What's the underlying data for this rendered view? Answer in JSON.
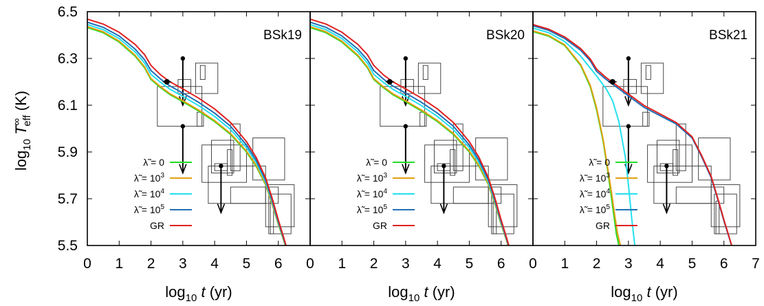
{
  "chart_data": {
    "type": "line",
    "ylabel": {
      "prefix": "log",
      "sub": "10",
      "var": "T",
      "varsup": "∞",
      "varsub": "eff",
      "unit": "(K)"
    },
    "xlabel": {
      "prefix": "log",
      "sub": "10",
      "var": "t",
      "unit": "(yr)"
    },
    "ylim": [
      5.5,
      6.5
    ],
    "yticks": [
      "5.5",
      "5.7",
      "5.9",
      "6.1",
      "6.3",
      "6.5"
    ],
    "ytick_values": [
      5.5,
      5.7,
      5.9,
      6.1,
      6.3,
      6.5
    ],
    "grid": false,
    "legend_location": "lower-left",
    "legend": [
      {
        "label": "λ̃ = 0",
        "pow": "",
        "color": "#22dd22"
      },
      {
        "label": "λ̃ = 10",
        "pow": "3",
        "color": "#e0a010"
      },
      {
        "label": "λ̃ = 10",
        "pow": "4",
        "color": "#22e0ee"
      },
      {
        "label": "λ̃ = 10",
        "pow": "5",
        "color": "#1f6fb5"
      },
      {
        "label": "GR",
        "pow": "",
        "color": "#e02020"
      }
    ],
    "panels": [
      {
        "label": "BSk19",
        "xlim": [
          0,
          7
        ],
        "xticks": [
          "0",
          "1",
          "2",
          "3",
          "4",
          "5",
          "6"
        ],
        "xtick_values": [
          0,
          1,
          2,
          3,
          4,
          5,
          6
        ],
        "series": [
          {
            "key": "lambda0",
            "color": "#22dd22",
            "x": [
              0,
              0.5,
              1.0,
              1.5,
              1.8,
              2.0,
              2.3,
              2.6,
              3.0,
              3.5,
              4.0,
              4.5,
              5.0,
              5.3,
              5.6,
              5.8,
              6.0,
              6.15,
              6.25
            ],
            "y": [
              6.432,
              6.41,
              6.37,
              6.31,
              6.26,
              6.21,
              6.175,
              6.145,
              6.115,
              6.075,
              6.03,
              5.975,
              5.9,
              5.84,
              5.76,
              5.68,
              5.59,
              5.53,
              5.485
            ]
          },
          {
            "key": "lambda1e3",
            "color": "#e0a010",
            "x": [
              0,
              0.5,
              1.0,
              1.5,
              1.8,
              2.0,
              2.3,
              2.6,
              3.0,
              3.5,
              4.0,
              4.5,
              5.0,
              5.3,
              5.6,
              5.8,
              6.0,
              6.15,
              6.25
            ],
            "y": [
              6.436,
              6.414,
              6.374,
              6.314,
              6.264,
              6.214,
              6.179,
              6.149,
              6.119,
              6.079,
              6.034,
              5.979,
              5.904,
              5.844,
              5.763,
              5.682,
              5.592,
              5.531,
              5.486
            ]
          },
          {
            "key": "lambda1e4",
            "color": "#22e0ee",
            "x": [
              0,
              0.5,
              1.0,
              1.5,
              1.8,
              2.0,
              2.3,
              2.6,
              3.0,
              3.5,
              4.0,
              4.5,
              5.0,
              5.3,
              5.6,
              5.8,
              6.0,
              6.15,
              6.25
            ],
            "y": [
              6.445,
              6.423,
              6.385,
              6.328,
              6.28,
              6.232,
              6.198,
              6.168,
              6.138,
              6.098,
              6.052,
              5.996,
              5.918,
              5.856,
              5.772,
              5.69,
              5.598,
              5.535,
              5.49
            ]
          },
          {
            "key": "lambda1e5",
            "color": "#1f6fb5",
            "x": [
              0,
              0.5,
              1.0,
              1.5,
              1.8,
              2.0,
              2.3,
              2.6,
              3.0,
              3.5,
              4.0,
              4.5,
              5.0,
              5.3,
              5.6,
              5.8,
              6.0,
              6.15,
              6.25
            ],
            "y": [
              6.455,
              6.433,
              6.396,
              6.34,
              6.294,
              6.248,
              6.212,
              6.182,
              6.152,
              6.112,
              6.066,
              6.01,
              5.93,
              5.866,
              5.78,
              5.696,
              5.603,
              5.538,
              5.493
            ]
          },
          {
            "key": "gr",
            "color": "#e02020",
            "x": [
              0,
              0.5,
              1.0,
              1.5,
              1.8,
              2.0,
              2.3,
              2.6,
              3.0,
              3.5,
              4.0,
              4.5,
              5.0,
              5.3,
              5.6,
              5.8,
              6.0,
              6.15,
              6.25
            ],
            "y": [
              6.468,
              6.447,
              6.412,
              6.36,
              6.316,
              6.27,
              6.23,
              6.2,
              6.17,
              6.13,
              6.084,
              6.026,
              5.944,
              5.878,
              5.79,
              5.705,
              5.61,
              5.543,
              5.497
            ]
          }
        ]
      },
      {
        "label": "BSk20",
        "xlim": [
          0,
          7
        ],
        "xticks": [
          "0",
          "1",
          "2",
          "3",
          "4",
          "5",
          "6"
        ],
        "xtick_values": [
          0,
          1,
          2,
          3,
          4,
          5,
          6
        ],
        "series": [
          {
            "key": "lambda0",
            "color": "#22dd22",
            "x": [
              0,
              0.5,
              1.0,
              1.5,
              1.8,
              2.0,
              2.3,
              2.6,
              3.0,
              3.5,
              4.0,
              4.5,
              5.0,
              5.3,
              5.6,
              5.8,
              6.0,
              6.15,
              6.25
            ],
            "y": [
              6.432,
              6.41,
              6.37,
              6.31,
              6.26,
              6.21,
              6.175,
              6.145,
              6.115,
              6.075,
              6.03,
              5.975,
              5.9,
              5.84,
              5.76,
              5.68,
              5.59,
              5.53,
              5.485
            ]
          },
          {
            "key": "lambda1e3",
            "color": "#e0a010",
            "x": [
              0,
              0.5,
              1.0,
              1.5,
              1.8,
              2.0,
              2.3,
              2.6,
              3.0,
              3.5,
              4.0,
              4.5,
              5.0,
              5.3,
              5.6,
              5.8,
              6.0,
              6.15,
              6.25
            ],
            "y": [
              6.436,
              6.414,
              6.374,
              6.314,
              6.264,
              6.214,
              6.179,
              6.149,
              6.119,
              6.079,
              6.034,
              5.979,
              5.904,
              5.844,
              5.763,
              5.682,
              5.592,
              5.531,
              5.486
            ]
          },
          {
            "key": "lambda1e4",
            "color": "#22e0ee",
            "x": [
              0,
              0.5,
              1.0,
              1.5,
              1.8,
              2.0,
              2.3,
              2.6,
              3.0,
              3.5,
              4.0,
              4.5,
              5.0,
              5.3,
              5.6,
              5.8,
              6.0,
              6.15,
              6.25
            ],
            "y": [
              6.445,
              6.423,
              6.385,
              6.328,
              6.28,
              6.232,
              6.198,
              6.168,
              6.138,
              6.098,
              6.052,
              5.996,
              5.918,
              5.856,
              5.772,
              5.69,
              5.598,
              5.535,
              5.49
            ]
          },
          {
            "key": "lambda1e5",
            "color": "#1f6fb5",
            "x": [
              0,
              0.5,
              1.0,
              1.5,
              1.8,
              2.0,
              2.3,
              2.6,
              3.0,
              3.5,
              4.0,
              4.5,
              5.0,
              5.3,
              5.6,
              5.8,
              6.0,
              6.15,
              6.25
            ],
            "y": [
              6.455,
              6.433,
              6.396,
              6.34,
              6.294,
              6.248,
              6.212,
              6.182,
              6.152,
              6.112,
              6.066,
              6.01,
              5.93,
              5.866,
              5.78,
              5.696,
              5.603,
              5.538,
              5.493
            ]
          },
          {
            "key": "gr",
            "color": "#e02020",
            "x": [
              0,
              0.5,
              1.0,
              1.5,
              1.8,
              2.0,
              2.3,
              2.6,
              3.0,
              3.5,
              4.0,
              4.5,
              5.0,
              5.3,
              5.6,
              5.8,
              6.0,
              6.15,
              6.25
            ],
            "y": [
              6.468,
              6.447,
              6.412,
              6.36,
              6.316,
              6.27,
              6.23,
              6.2,
              6.17,
              6.13,
              6.084,
              6.026,
              5.944,
              5.878,
              5.79,
              5.705,
              5.61,
              5.543,
              5.497
            ]
          }
        ]
      },
      {
        "label": "BSk21",
        "xlim": [
          0,
          7
        ],
        "xticks": [
          "0",
          "1",
          "2",
          "3",
          "4",
          "5",
          "6",
          "7"
        ],
        "xtick_values": [
          0,
          1,
          2,
          3,
          4,
          5,
          6,
          7
        ],
        "series": [
          {
            "key": "lambda0",
            "color": "#22dd22",
            "x": [
              0,
              0.5,
              1.0,
              1.5,
              1.8,
              2.0,
              2.2,
              2.35,
              2.45,
              2.55,
              2.62,
              2.7
            ],
            "y": [
              6.415,
              6.395,
              6.355,
              6.27,
              6.18,
              6.08,
              5.95,
              5.82,
              5.72,
              5.62,
              5.55,
              5.5
            ]
          },
          {
            "key": "lambda1e3",
            "color": "#e0a010",
            "x": [
              0,
              0.5,
              1.0,
              1.5,
              1.8,
              2.0,
              2.2,
              2.35,
              2.47,
              2.58,
              2.66,
              2.75
            ],
            "y": [
              6.418,
              6.398,
              6.358,
              6.274,
              6.186,
              6.088,
              5.958,
              5.83,
              5.725,
              5.62,
              5.55,
              5.5
            ]
          },
          {
            "key": "lambda1e4",
            "color": "#22e0ee",
            "x": [
              0,
              0.5,
              1.0,
              1.5,
              2.0,
              2.3,
              2.5,
              2.7,
              2.9,
              3.0,
              3.1,
              3.2
            ],
            "y": [
              6.43,
              6.41,
              6.372,
              6.31,
              6.225,
              6.17,
              6.12,
              6.03,
              5.88,
              5.76,
              5.62,
              5.5
            ]
          },
          {
            "key": "lambda1e5",
            "color": "#1f6fb5",
            "x": [
              0,
              0.5,
              1.0,
              1.5,
              1.8,
              2.0,
              2.3,
              2.6,
              3.0,
              3.5,
              4.0,
              4.5,
              5.0,
              5.3,
              5.6,
              5.8,
              6.0,
              6.15,
              6.25
            ],
            "y": [
              6.44,
              6.42,
              6.385,
              6.335,
              6.29,
              6.245,
              6.21,
              6.18,
              6.14,
              6.09,
              6.055,
              6.02,
              5.96,
              5.88,
              5.79,
              5.7,
              5.605,
              5.54,
              5.495
            ]
          },
          {
            "key": "gr",
            "color": "#e02020",
            "x": [
              0,
              0.5,
              1.0,
              1.5,
              1.8,
              2.0,
              2.3,
              2.6,
              3.0,
              3.5,
              4.0,
              4.5,
              5.0,
              5.3,
              5.6,
              5.8,
              6.0,
              6.15,
              6.25
            ],
            "y": [
              6.445,
              6.425,
              6.392,
              6.342,
              6.298,
              6.254,
              6.218,
              6.188,
              6.148,
              6.098,
              6.062,
              6.026,
              5.965,
              5.885,
              5.795,
              5.705,
              5.61,
              5.543,
              5.497
            ]
          }
        ]
      }
    ],
    "observations": {
      "point": {
        "x": 2.5,
        "y": 6.2
      },
      "upper_limits": [
        {
          "x": 3.0,
          "top": 6.3,
          "bottom": 6.1
        },
        {
          "x": 3.0,
          "top": 6.01,
          "bottom": 5.81
        },
        {
          "x": 4.2,
          "top": 5.84,
          "bottom": 5.64
        }
      ],
      "boxes": [
        {
          "x1": 3.4,
          "x2": 4.1,
          "y1": 6.15,
          "y2": 6.28
        },
        {
          "x1": 3.55,
          "x2": 3.7,
          "y1": 6.21,
          "y2": 6.27
        },
        {
          "x1": 2.85,
          "x2": 3.25,
          "y1": 6.15,
          "y2": 6.21
        },
        {
          "x1": 2.2,
          "x2": 3.6,
          "y1": 6.01,
          "y2": 6.18
        },
        {
          "x1": 3.45,
          "x2": 3.65,
          "y1": 6.01,
          "y2": 6.07
        },
        {
          "x1": 4.5,
          "x2": 4.8,
          "y1": 5.82,
          "y2": 6.02
        },
        {
          "x1": 3.9,
          "x2": 4.6,
          "y1": 5.81,
          "y2": 5.95
        },
        {
          "x1": 3.6,
          "x2": 5.0,
          "y1": 5.77,
          "y2": 5.93
        },
        {
          "x1": 4.0,
          "x2": 4.4,
          "y1": 5.82,
          "y2": 5.85
        },
        {
          "x1": 5.2,
          "x2": 6.2,
          "y1": 5.78,
          "y2": 5.96
        },
        {
          "x1": 3.8,
          "x2": 5.6,
          "y1": 5.68,
          "y2": 5.84
        },
        {
          "x1": 4.5,
          "x2": 6.0,
          "y1": 5.68,
          "y2": 5.75
        },
        {
          "x1": 5.6,
          "x2": 6.5,
          "y1": 5.58,
          "y2": 5.76
        },
        {
          "x1": 5.7,
          "x2": 6.4,
          "y1": 5.55,
          "y2": 5.72
        },
        {
          "x1": 5.75,
          "x2": 5.85,
          "y1": 5.55,
          "y2": 5.69
        },
        {
          "x1": 4.4,
          "x2": 4.55,
          "y1": 5.8,
          "y2": 5.91
        }
      ]
    }
  }
}
